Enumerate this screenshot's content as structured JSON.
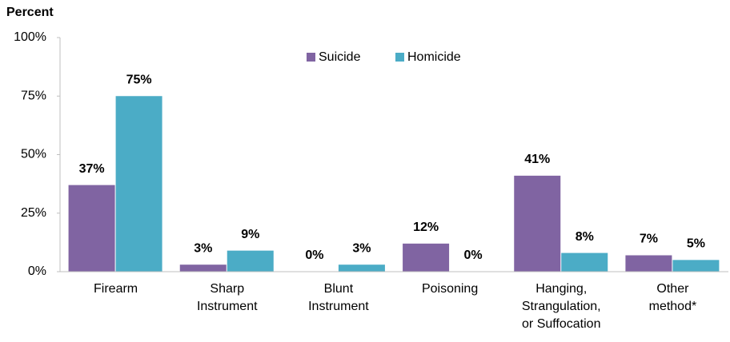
{
  "chart_data": {
    "type": "bar",
    "ylabel": "Percent",
    "categories": [
      [
        "Firearm"
      ],
      [
        "Sharp",
        "Instrument"
      ],
      [
        "Blunt",
        "Instrument"
      ],
      [
        "Poisoning"
      ],
      [
        "Hanging,",
        "Strangulation,",
        "or Suffocation"
      ],
      [
        "Other",
        "method*"
      ]
    ],
    "series": [
      {
        "name": "Suicide",
        "color": "#8064a2",
        "values": [
          37,
          3,
          0,
          12,
          41,
          7
        ],
        "value_labels": [
          "37%",
          "3%",
          "0%",
          "12%",
          "41%",
          "7%"
        ]
      },
      {
        "name": "Homicide",
        "color": "#4bacc6",
        "values": [
          75,
          9,
          3,
          0,
          8,
          5
        ],
        "value_labels": [
          "75%",
          "9%",
          "3%",
          "0%",
          "8%",
          "5%"
        ]
      }
    ],
    "ylim": [
      0,
      100
    ],
    "yticks": [
      {
        "value": 0,
        "label": "0%"
      },
      {
        "value": 25,
        "label": "25%"
      },
      {
        "value": 50,
        "label": "50%"
      },
      {
        "value": 75,
        "label": "75%"
      },
      {
        "value": 100,
        "label": "100%"
      }
    ],
    "legend": "top"
  }
}
